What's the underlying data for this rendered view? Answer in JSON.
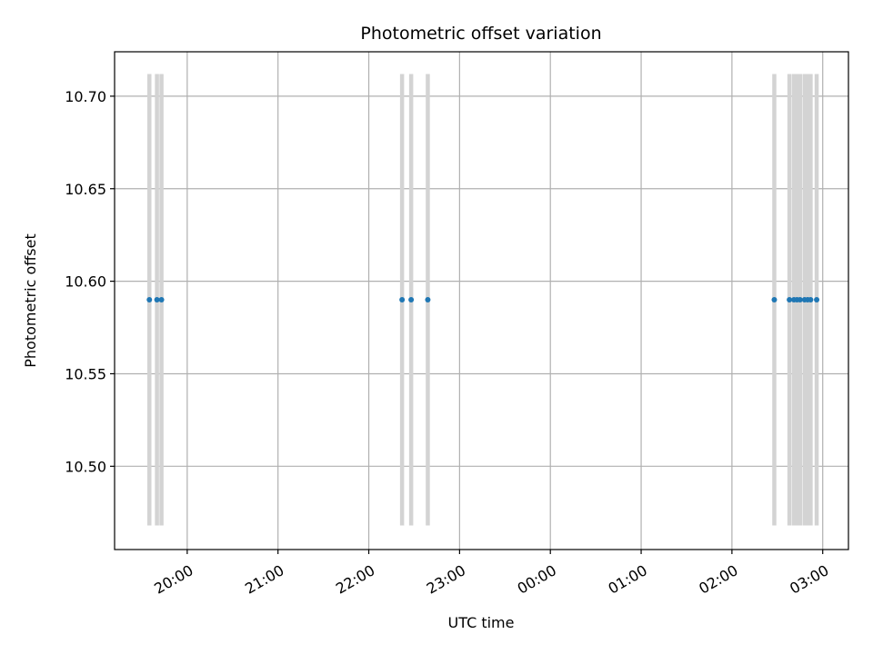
{
  "chart_data": {
    "type": "scatter",
    "title": "Photometric offset variation",
    "xlabel": "UTC time",
    "ylabel": "Photometric offset",
    "x_ticks": [
      "20:00",
      "21:00",
      "22:00",
      "23:00",
      "00:00",
      "01:00",
      "02:00",
      "03:00"
    ],
    "y_ticks": [
      "10.50",
      "10.55",
      "10.60",
      "10.65",
      "10.70"
    ],
    "x_tick_hours": [
      20,
      21,
      22,
      23,
      24,
      25,
      26,
      27
    ],
    "y_tick_values": [
      10.5,
      10.55,
      10.6,
      10.65,
      10.7
    ],
    "xlim": [
      "19:12",
      "03:17"
    ],
    "ylim": [
      10.455,
      10.724
    ],
    "grid": true,
    "series": [
      {
        "color": "#1f77b4",
        "x": [
          "19:35",
          "19:40",
          "19:43",
          "22:22",
          "22:28",
          "22:39",
          "02:28",
          "02:38",
          "02:41",
          "02:43",
          "02:45",
          "02:48",
          "02:50",
          "02:52",
          "02:56"
        ],
        "y": [
          10.59,
          10.59,
          10.59,
          10.59,
          10.59,
          10.59,
          10.59,
          10.59,
          10.59,
          10.59,
          10.59,
          10.59,
          10.59,
          10.59,
          10.59
        ]
      }
    ],
    "vertical_bars": {
      "color": "#d3d3d3",
      "y_range": [
        10.468,
        10.712
      ],
      "x": [
        "19:35",
        "19:40",
        "19:43",
        "22:22",
        "22:28",
        "22:39",
        "02:28",
        "02:38",
        "02:41",
        "02:43",
        "02:45",
        "02:48",
        "02:50",
        "02:52",
        "02:56"
      ]
    },
    "colors": {
      "frame": "#000000",
      "grid": "#b0b0b0",
      "points": "#1f77b4",
      "bars": "#d3d3d3"
    }
  }
}
